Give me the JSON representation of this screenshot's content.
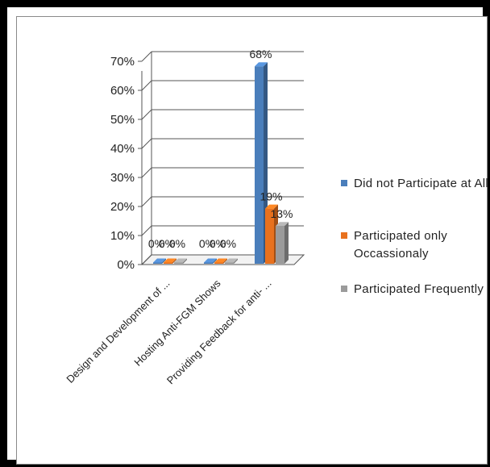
{
  "chart_data": {
    "type": "bar",
    "categories": [
      "Design and Development of ...",
      "Hosting Anti-FGM Shows",
      "Providing Feedback for anti- ..."
    ],
    "series": [
      {
        "name": "Did not Participate at All",
        "color": "#4a7ebb",
        "values": [
          0,
          0,
          68
        ]
      },
      {
        "name": "Participated only Occassionaly",
        "color": "#e8711e",
        "values": [
          0,
          0,
          19
        ]
      },
      {
        "name": "Participated Frequently",
        "color": "#9b9b9b",
        "values": [
          0,
          0,
          13
        ]
      }
    ],
    "data_labels": [
      [
        "0%",
        "0%",
        "68%"
      ],
      [
        "0%",
        "0%",
        "19%"
      ],
      [
        "0%",
        "0%",
        "13%"
      ]
    ],
    "yticks": [
      "0%",
      "10%",
      "20%",
      "30%",
      "40%",
      "50%",
      "60%",
      "70%"
    ],
    "ylim": [
      0,
      70
    ],
    "title": "",
    "xlabel": "",
    "ylabel": "",
    "grid": true,
    "legend_position": "right",
    "style": "3d-clustered-column"
  }
}
